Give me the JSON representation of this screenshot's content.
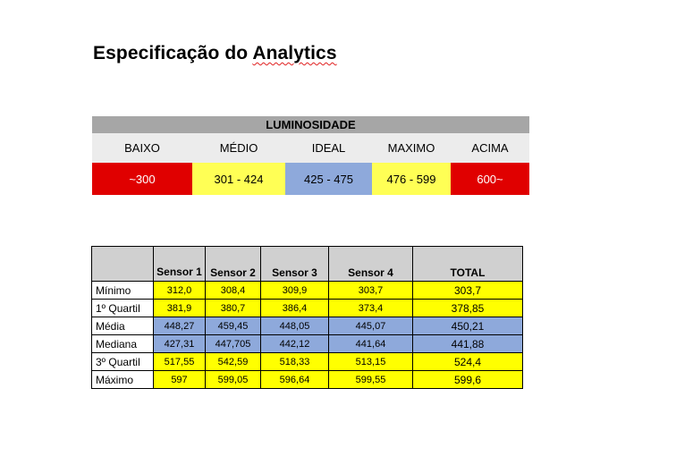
{
  "title": {
    "prefix": "Especificação do ",
    "underlined": "Analytics"
  },
  "luminosidade": {
    "header": "LUMINOSIDADE",
    "labels": [
      "BAIXO",
      "MÉDIO",
      "IDEAL",
      "MAXIMO",
      "ACIMA"
    ],
    "ranges": [
      "~300",
      "301 - 424",
      "425 - 475",
      "476 - 599",
      "600~"
    ],
    "colors": [
      "#e00000",
      "#ffff55",
      "#8ea9db",
      "#ffff55",
      "#e00000"
    ]
  },
  "stats": {
    "headers": [
      "",
      "Sensor 1",
      "Sensor 2",
      "Sensor 3",
      "Sensor 4",
      "TOTAL"
    ],
    "rows": [
      {
        "label": "Mínimo",
        "values": [
          "312,0",
          "308,4",
          "309,9",
          "303,7"
        ],
        "total": "303,7",
        "color": "#ffff00"
      },
      {
        "label": "1º Quartil",
        "values": [
          "381,9",
          "380,7",
          "386,4",
          "373,4"
        ],
        "total": "378,85",
        "color": "#ffff00"
      },
      {
        "label": "Média",
        "values": [
          "448,27",
          "459,45",
          "448,05",
          "445,07"
        ],
        "total": "450,21",
        "color": "#8ea9db"
      },
      {
        "label": "Mediana",
        "values": [
          "427,31",
          "447,705",
          "442,12",
          "441,64"
        ],
        "total": "441,88",
        "color": "#8ea9db"
      },
      {
        "label": "3º Quartil",
        "values": [
          "517,55",
          "542,59",
          "518,33",
          "513,15"
        ],
        "total": "524,4",
        "color": "#ffff00"
      },
      {
        "label": "Máximo",
        "values": [
          "597",
          "599,05",
          "596,64",
          "599,55"
        ],
        "total": "599,6",
        "color": "#ffff00"
      }
    ]
  }
}
